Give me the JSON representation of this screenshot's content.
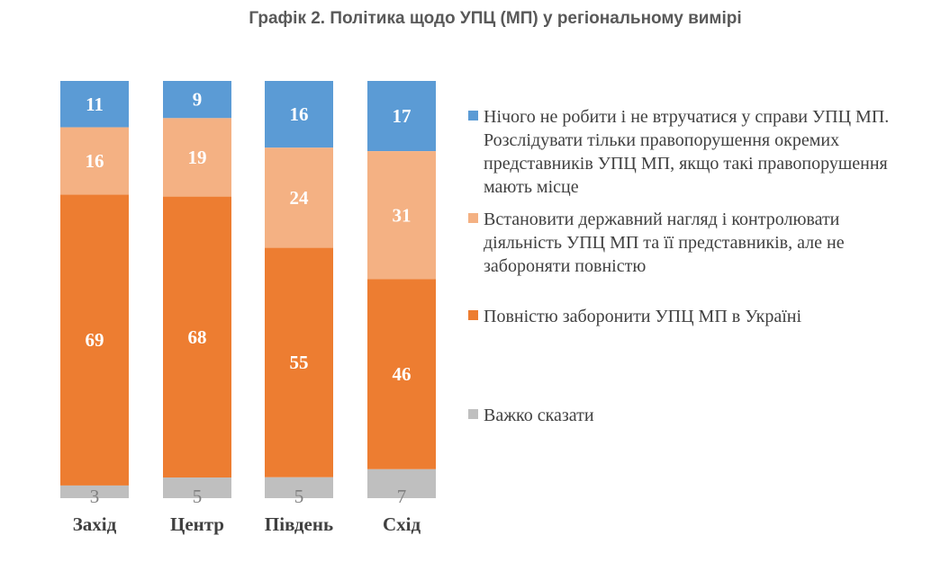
{
  "chart_data": {
    "type": "bar",
    "stacked": true,
    "normalized": true,
    "title": "Графік 2. Політика щодо УПЦ (МП) у регіональному вимірі",
    "categories": [
      "Захід",
      "Центр",
      "Південь",
      "Схід"
    ],
    "series": [
      {
        "name": "Нічого не робити і не втручатися у справи УПЦ МП. Розслідувати тільки правопорушення окремих представників УПЦ МП, якщо такі правопорушення мають місце",
        "values": [
          11,
          9,
          16,
          17
        ],
        "color": "#5b9bd5"
      },
      {
        "name": "Встановити державний нагляд і контролювати діяльність УПЦ МП та її представників, але не забороняти повністю",
        "values": [
          16,
          19,
          24,
          31
        ],
        "color": "#f4b183"
      },
      {
        "name": "Повністю заборонити УПЦ МП в Україні",
        "values": [
          69,
          68,
          55,
          46
        ],
        "color": "#ed7d31"
      },
      {
        "name": "Важко сказати",
        "values": [
          3,
          5,
          5,
          7
        ],
        "color": "#bfbfbf"
      }
    ],
    "legend_position": "right",
    "grid": false
  }
}
